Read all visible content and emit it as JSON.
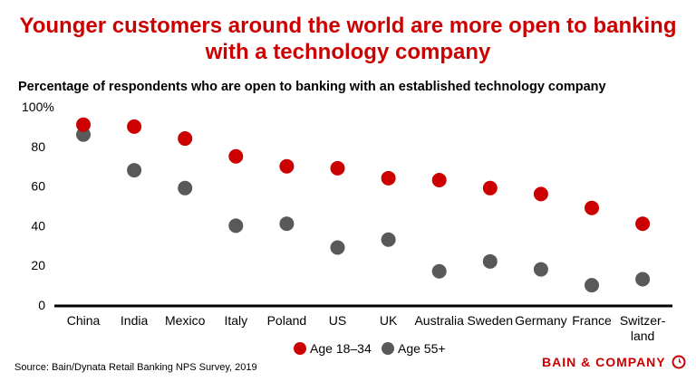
{
  "chart_data": {
    "type": "scatter",
    "title": "Younger customers around the world are more open to banking with a technology company",
    "subtitle": "Percentage of respondents who are open to banking with an established technology company",
    "categories": [
      "China",
      "India",
      "Mexico",
      "Italy",
      "Poland",
      "US",
      "UK",
      "Australia",
      "Sweden",
      "Germany",
      "France",
      "Switzer-land"
    ],
    "series": [
      {
        "name": "Age 18–34",
        "color": "#cc0000",
        "values": [
          91,
          90,
          84,
          75,
          70,
          69,
          64,
          63,
          59,
          56,
          49,
          41
        ]
      },
      {
        "name": "Age 55+",
        "color": "#595959",
        "values": [
          86,
          68,
          59,
          40,
          41,
          29,
          33,
          17,
          22,
          18,
          10,
          13
        ]
      }
    ],
    "yticks": [
      "0",
      "20",
      "40",
      "60",
      "80",
      "100%"
    ],
    "ylim": [
      0,
      100
    ],
    "grid": false,
    "legend": "bottom"
  },
  "source": "Source: Bain/Dynata Retail Banking NPS Survey, 2019",
  "logo": {
    "text": "BAIN & COMPANY",
    "icon": "bain-logo-icon"
  }
}
